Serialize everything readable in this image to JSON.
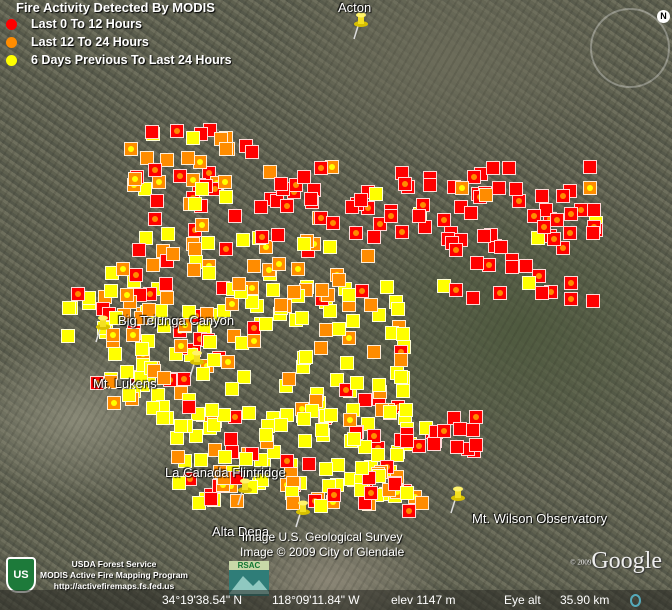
{
  "legend": {
    "title": "Fire Activity Detected By MODIS",
    "items": [
      {
        "label": "Last 0 To 12 Hours",
        "color": "#ff0000"
      },
      {
        "label": "Last 12 To 24 Hours",
        "color": "#ff8c00"
      },
      {
        "label": "6 Days Previous To Last 24 Hours",
        "color": "#ffff00"
      }
    ]
  },
  "places": [
    {
      "name": "Acton"
    },
    {
      "name": "Big Tejunga Canyon"
    },
    {
      "name": "Mt. Lukens"
    },
    {
      "name": "La Canada Flintridge"
    },
    {
      "name": "Alta Dena"
    },
    {
      "name": "Mt. Wilson Observatory"
    }
  ],
  "credits": {
    "line1": "Image U.S. Geological Survey",
    "line2": "Image © 2009 City of Glendale"
  },
  "usfs": {
    "line1": "USDA Forest Service",
    "line2": "MODIS Active Fire Mapping Program",
    "line3": "http://activefiremaps.fs.fed.us",
    "logo_text": "US"
  },
  "rsac": {
    "logo_text": "RSAC"
  },
  "google": {
    "logo": "Google",
    "copyright": "© 2009"
  },
  "compass": {
    "label": "N"
  },
  "status": {
    "lat": "34°19'38.54\" N",
    "lon": "118°09'11.84\" W",
    "elev": "elev 1147 m",
    "eye_alt_label": "Eye alt",
    "eye_alt": "35.90 km"
  }
}
